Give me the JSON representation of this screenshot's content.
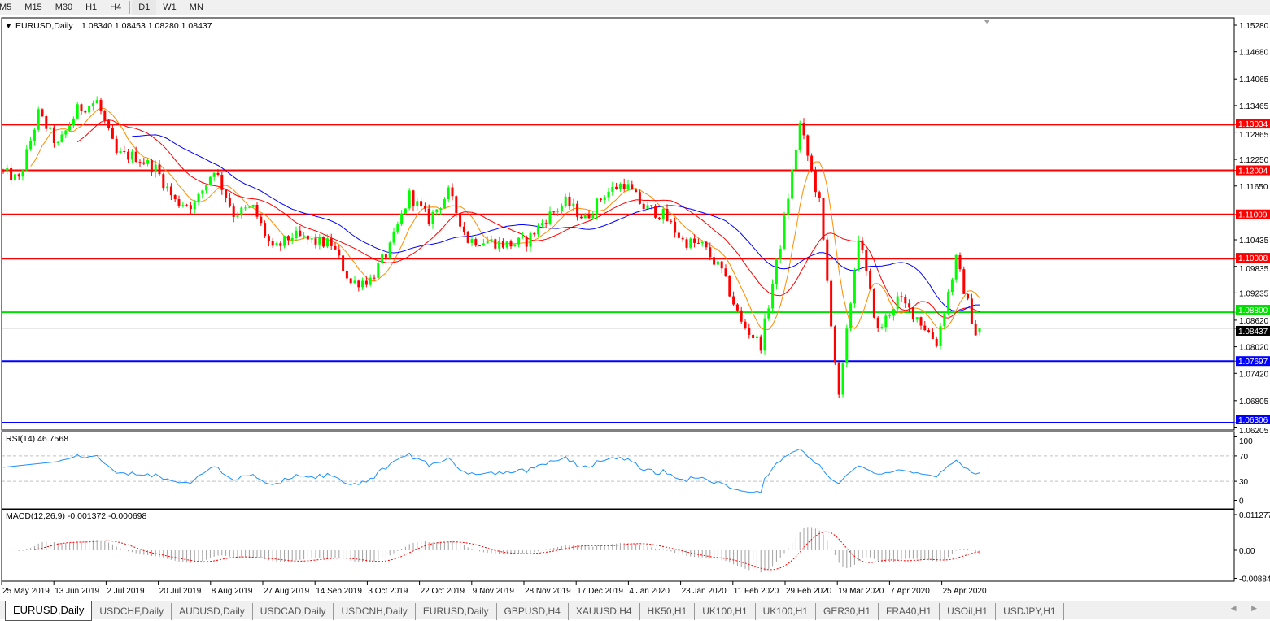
{
  "toolbar": {
    "timeframes": [
      "M5",
      "M15",
      "M30",
      "H1",
      "H4",
      "D1",
      "W1",
      "MN"
    ],
    "active": "D1"
  },
  "main_panel": {
    "symbol": "EURUSD,Daily",
    "ohlc_text": "1.08340 1.08453 1.08280 1.08437"
  },
  "rsi_panel": {
    "label": "RSI(14) 46.7568",
    "levels": [
      "100",
      "70",
      "30",
      "0"
    ]
  },
  "macd_panel": {
    "label": "MACD(12,26,9) -0.001372 -0.000698",
    "levels": [
      "0.011277",
      "0.00",
      "-0.008845"
    ]
  },
  "colors": {
    "bull": "#00ff00",
    "bear": "#ff0000",
    "ma_fast": "#ff8c00",
    "ma_mid": "#ff0000",
    "ma_slow": "#0000ff",
    "rsi": "#1e90ff",
    "macd_hist": "#a0a0a0",
    "macd_signal": "#ff0000",
    "resistance": "#ff0000",
    "support_green": "#00e000",
    "support_blue": "#0000ff",
    "bid": "#c0c0c0"
  },
  "chart_data": {
    "type": "candlestick",
    "symbol": "EURUSD",
    "timeframe": "Daily",
    "ylim": [
      1.06205,
      1.1528
    ],
    "price_ticks": [
      "1.15280",
      "1.14680",
      "1.14065",
      "1.13465",
      "1.12865",
      "1.12250",
      "1.11650",
      "1.10435",
      "1.09835",
      "1.09235",
      "1.08620",
      "1.08020",
      "1.07420",
      "1.06805",
      "1.06205"
    ],
    "date_ticks": [
      "25 May 2019",
      "13 Jun 2019",
      "2 Jul 2019",
      "20 Jul 2019",
      "8 Aug 2019",
      "27 Aug 2019",
      "14 Sep 2019",
      "3 Oct 2019",
      "22 Oct 2019",
      "9 Nov 2019",
      "28 Nov 2019",
      "17 Dec 2019",
      "4 Jan 2020",
      "23 Jan 2020",
      "11 Feb 2020",
      "29 Feb 2020",
      "19 Mar 2020",
      "7 Apr 2020",
      "25 Apr 2020"
    ],
    "weekly_closes_approx": [
      1.12,
      1.1178,
      1.1328,
      1.1255,
      1.1337,
      1.1356,
      1.1236,
      1.1231,
      1.1204,
      1.113,
      1.1122,
      1.1205,
      1.1102,
      1.1115,
      1.1018,
      1.1053,
      1.104,
      1.1034,
      1.0946,
      1.0954,
      1.1025,
      1.1145,
      1.1089,
      1.115,
      1.1043,
      1.1041,
      1.1032,
      1.104,
      1.1093,
      1.1128,
      1.1091,
      1.1148,
      1.1172,
      1.1117,
      1.11,
      1.1041,
      1.103,
      1.0972,
      1.0855,
      1.0807,
      1.1034,
      1.1304,
      1.1126,
      1.0682,
      1.1053,
      1.0836,
      1.091,
      1.0869,
      1.0811,
      1.0998,
      1.0833
    ],
    "last_bar": {
      "open": 1.0834,
      "high": 1.08453,
      "low": 1.0828,
      "close": 1.08437
    },
    "horizontal_lines": [
      {
        "price": 1.13034,
        "label": "1.13034",
        "color": "#ff0000"
      },
      {
        "price": 1.12004,
        "label": "1.12004",
        "color": "#ff0000"
      },
      {
        "price": 1.11009,
        "label": "1.11009",
        "color": "#ff0000"
      },
      {
        "price": 1.10008,
        "label": "1.10008",
        "color": "#ff0000"
      },
      {
        "price": 1.088,
        "label": "1.08800",
        "color": "#00e000"
      },
      {
        "price": 1.08437,
        "label": "1.08437",
        "color": "#000000",
        "bid": true
      },
      {
        "price": 1.07697,
        "label": "1.07697",
        "color": "#0000ff"
      },
      {
        "price": 1.06306,
        "label": "1.06306",
        "color": "#0000ff"
      }
    ],
    "indicators": {
      "rsi_period": 14,
      "rsi_levels": [
        30,
        70
      ],
      "rsi_ylim": [
        0,
        100
      ],
      "macd": [
        12,
        26,
        9
      ],
      "macd_ylim": [
        -0.008845,
        0.011277
      ]
    }
  },
  "tabs": [
    "EURUSD,Daily",
    "USDCHF,Daily",
    "AUDUSD,Daily",
    "USDCAD,Daily",
    "USDCNH,Daily",
    "EURUSD,Daily",
    "GBPUSD,H4",
    "XAUUSD,H4",
    "HK50,H1",
    "UK100,H1",
    "UK100,H1",
    "GER30,H1",
    "FRA40,H1",
    "USOil,H1",
    "USDJPY,H1"
  ],
  "active_tab": 0
}
